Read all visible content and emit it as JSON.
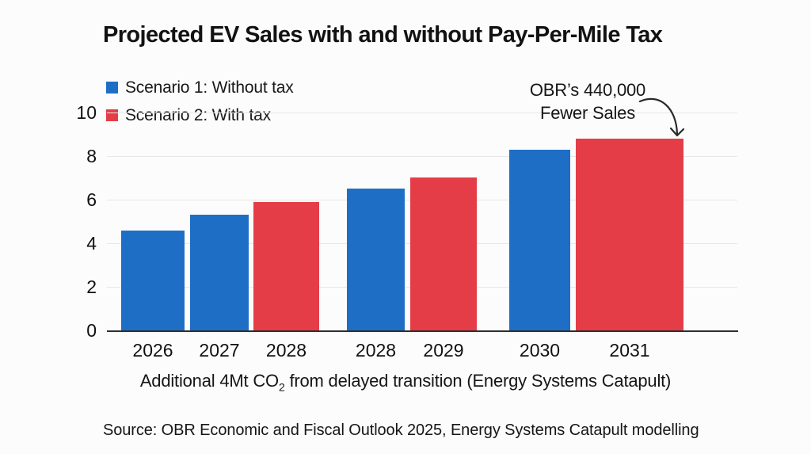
{
  "title": "Projected EV Sales with and without Pay-Per-Mile Tax",
  "legend": [
    {
      "label": "Scenario 1: Without tax",
      "color": "#1f6ec6"
    },
    {
      "label": "Scenario 2: With tax",
      "color": "#e43d47"
    }
  ],
  "annotation": {
    "line1": "OBR’s 440,000",
    "line2": "Fewer Sales"
  },
  "caption": {
    "pre": "Additional 4Mt CO",
    "sub": "2",
    "post": " from delayed transition (Energy Systems Catapult)"
  },
  "source": "Source: OBR Economic and Fiscal Outlook 2025, Energy Systems Catapult modelling",
  "colors": {
    "scenario1": "#1f6ec6",
    "scenario2": "#e43d47",
    "grid": "#e7e7e7",
    "axis": "#2e2e2e",
    "text": "#151515"
  },
  "chart_data": {
    "type": "bar",
    "title": "Projected EV Sales with and without Pay-Per-Mile Tax",
    "xlabel": "",
    "ylabel": "",
    "ylim": [
      0,
      10
    ],
    "yticks": [
      0,
      2,
      4,
      6,
      8,
      10
    ],
    "grid": true,
    "legend_position": "top-left",
    "series_names": [
      "Scenario 1: Without tax",
      "Scenario 2: With tax"
    ],
    "bars": [
      {
        "year": "2026",
        "series": "Scenario 1: Without tax",
        "value": 4.6
      },
      {
        "year": "2027",
        "series": "Scenario 1: Without tax",
        "value": 5.3
      },
      {
        "year": "2028",
        "series": "Scenario 2: With tax",
        "value": 5.9
      },
      {
        "year": "2028",
        "series": "Scenario 1: Without tax",
        "value": 6.5
      },
      {
        "year": "2029",
        "series": "Scenario 2: With tax",
        "value": 7.0
      },
      {
        "year": "2030",
        "series": "Scenario 1: Without tax",
        "value": 8.3
      },
      {
        "year": "2031",
        "series": "Scenario 2: With tax",
        "value": 8.8
      }
    ],
    "annotation": "OBR’s 440,000 Fewer Sales"
  }
}
